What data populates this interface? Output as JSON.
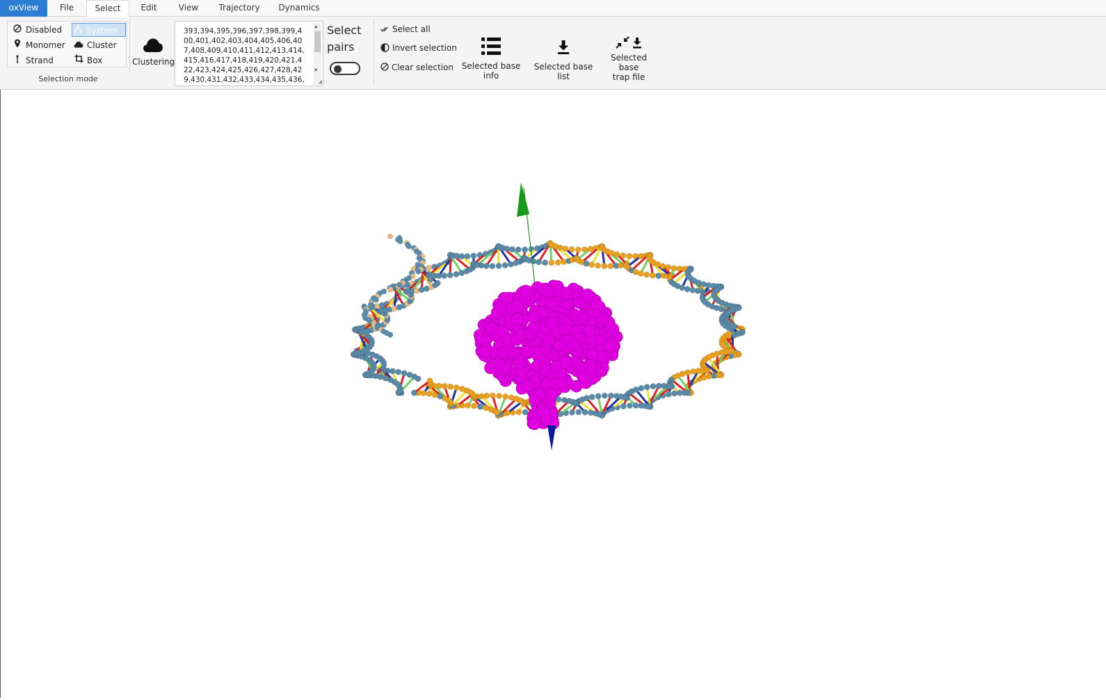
{
  "tabs": [
    {
      "label": "oxView"
    },
    {
      "label": "File"
    },
    {
      "label": "Select"
    },
    {
      "label": "Edit"
    },
    {
      "label": "View"
    },
    {
      "label": "Trajectory"
    },
    {
      "label": "Dynamics"
    }
  ],
  "selection_mode": {
    "group_label": "Selection mode",
    "options": [
      {
        "label": "Disabled",
        "icon": "ban-icon"
      },
      {
        "label": "System",
        "icon": "sitemap-icon",
        "selected": true
      },
      {
        "label": "Monomer",
        "icon": "map-pin-icon"
      },
      {
        "label": "Cluster",
        "icon": "cloud-icon"
      },
      {
        "label": "Strand",
        "icon": "strand-icon"
      },
      {
        "label": "Box",
        "icon": "crop-icon"
      }
    ]
  },
  "clustering": {
    "label": "Clustering",
    "icon": "cloud-icon"
  },
  "id_list": {
    "value": "393,394,395,396,397,398,399,400,401,402,403,404,405,406,407,408,409,410,411,412,413,414,415,416,417,418,419,420,421,422,423,424,425,426,427,428,429,430,431,432,433,434,435,436,"
  },
  "select_pairs": {
    "line1": "Select",
    "line2": "pairs",
    "toggle_on": false
  },
  "actions": {
    "select_all": "Select all",
    "invert_selection": "Invert selection",
    "clear_selection": "Clear selection",
    "selected_base_info": "Selected base info",
    "selected_base_list": "Selected base list",
    "selected_base_trap_line1": "Selected base",
    "selected_base_trap_line2": "trap file"
  },
  "colors": {
    "accent": "#2b7cd3",
    "strand_orange": "#e8a020",
    "strand_steel": "#5a8aa8",
    "strand_tan": "#e6b884",
    "selection_magenta": "#e000e0",
    "axis_green": "#1a9a1a",
    "axis_blue": "#0a1aa0"
  }
}
